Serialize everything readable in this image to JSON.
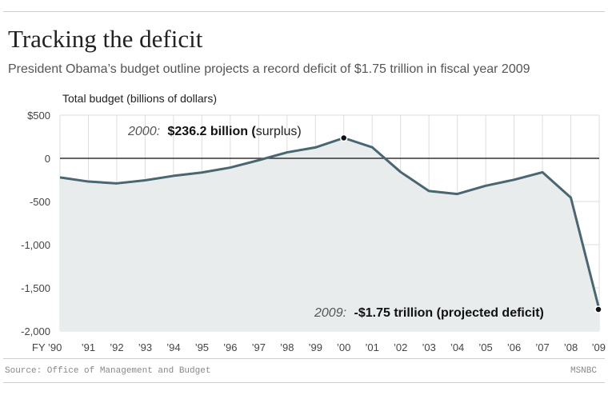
{
  "title": "Tracking the deficit",
  "subtitle": "President Obama’s budget outline projects a record deficit of $1.75 trillion in fiscal year 2009",
  "source": "Source: Office of Management and Budget",
  "credit": "MSNBC",
  "colors": {
    "line": "#4a6670",
    "area": "#e8eced",
    "zero": "#333333",
    "grid": "#dddddd"
  },
  "chart_data": {
    "type": "area",
    "ylabel": "Total budget (billions of dollars)",
    "ylim": [
      -2000,
      500
    ],
    "grid": true,
    "yticks": [
      500,
      0,
      -500,
      -1000,
      -1500,
      -2000
    ],
    "ytick_labels": [
      "$500",
      "0",
      "-500",
      "-1,000",
      "-1,500",
      "-2,000"
    ],
    "x": [
      1990,
      1991,
      1992,
      1993,
      1994,
      1995,
      1996,
      1997,
      1998,
      1999,
      2000,
      2001,
      2002,
      2003,
      2004,
      2005,
      2006,
      2007,
      2008,
      2009
    ],
    "xtick_labels": [
      "FY ’90",
      "’91",
      "’92",
      "’93",
      "’94",
      "’95",
      "’96",
      "’97",
      "’98",
      "’99",
      "’00",
      "’01",
      "’02",
      "’03",
      "’04",
      "’05",
      "’06",
      "’07",
      "’08",
      "’09"
    ],
    "series": [
      {
        "values": [
          -221,
          -269,
          -290,
          -255,
          -203,
          -164,
          -107,
          -22,
          69,
          126,
          236,
          128,
          -158,
          -378,
          -413,
          -318,
          -248,
          -161,
          -455,
          -1750
        ]
      }
    ],
    "annotations": [
      {
        "x": 2000,
        "year": "2000:",
        "bold": "$236.2 billion (",
        "normal": "surplus)"
      },
      {
        "x": 2009,
        "year": "2009:",
        "bold": "-$1.75 trillion (projected deficit)",
        "normal": ""
      }
    ]
  }
}
